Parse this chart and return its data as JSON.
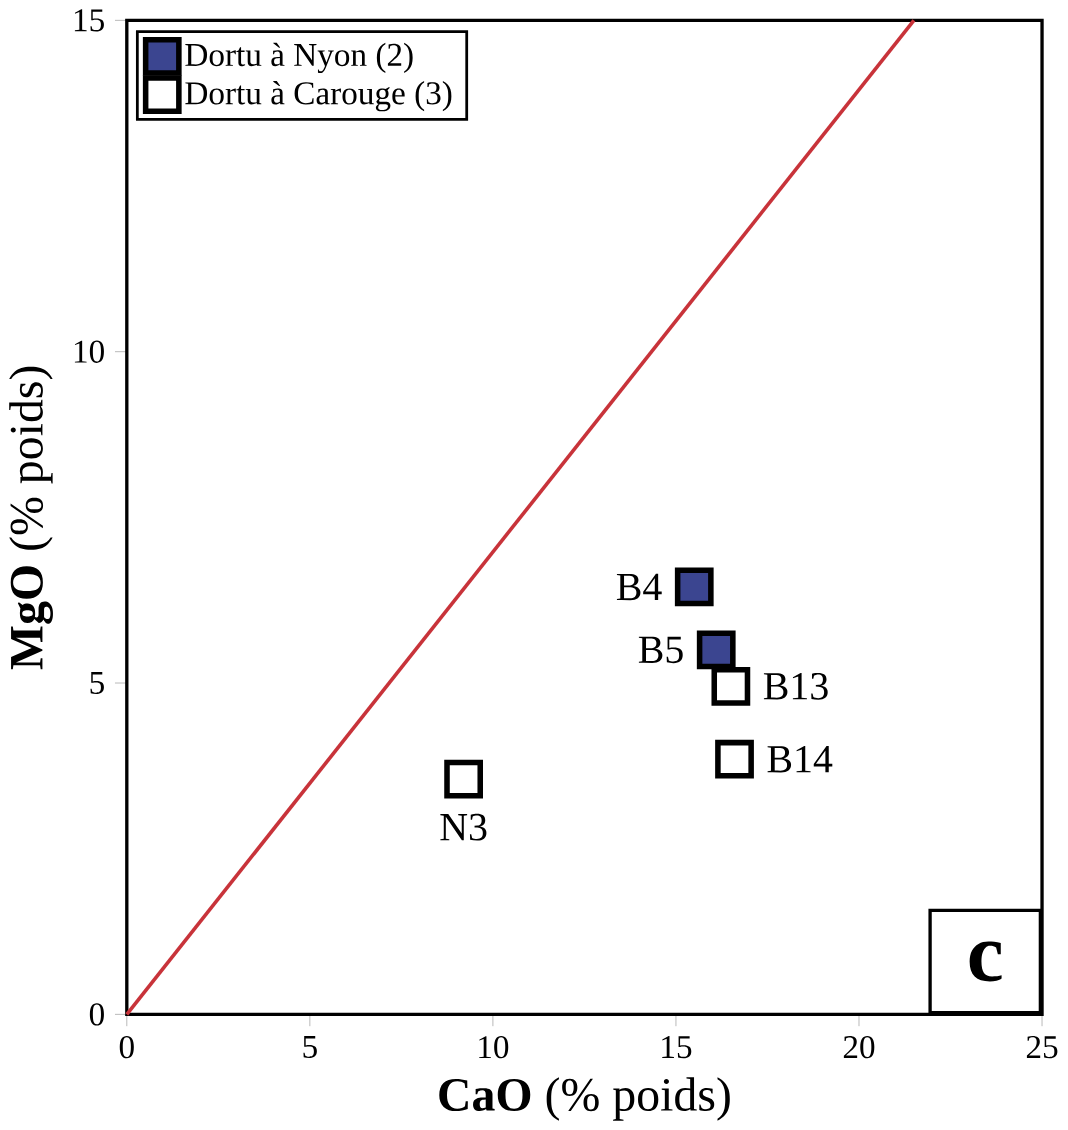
{
  "chart_data": {
    "type": "scatter",
    "xlabel": "**CaO** (% poids)",
    "ylabel": "**MgO** (% poids)",
    "xlim": [
      0,
      25
    ],
    "ylim": [
      0,
      15
    ],
    "xticks": [
      0,
      5,
      10,
      15,
      20,
      25
    ],
    "yticks": [
      0,
      5,
      10,
      15
    ],
    "grid": false,
    "legend": "top left",
    "marker": "square",
    "series": [
      {
        "name": "Dortu à Nyon (2)",
        "color": "#3b4590",
        "x": [
          15.5,
          16.1
        ],
        "values": [
          6.45,
          5.5
        ]
      },
      {
        "name": "Dortu à Carouge (3)",
        "color": "#ffffff",
        "x": [
          16.5,
          16.6,
          9.2
        ],
        "values": [
          4.95,
          3.85,
          3.55
        ]
      },
      {
        "type": "line",
        "color": "#c8333a",
        "marker": "none",
        "x": [
          0,
          21.5
        ],
        "values": [
          0,
          15
        ]
      }
    ],
    "annotations": [
      {
        "text": "B4",
        "x": 15.5,
        "y": 6.45
      },
      {
        "text": "B5",
        "x": 16.1,
        "y": 5.5
      },
      {
        "text": "B13",
        "x": 16.5,
        "y": 4.95
      },
      {
        "text": "B14",
        "x": 16.6,
        "y": 3.85
      },
      {
        "text": "N3",
        "x": 9.2,
        "y": 3.55
      },
      "c"
    ]
  }
}
